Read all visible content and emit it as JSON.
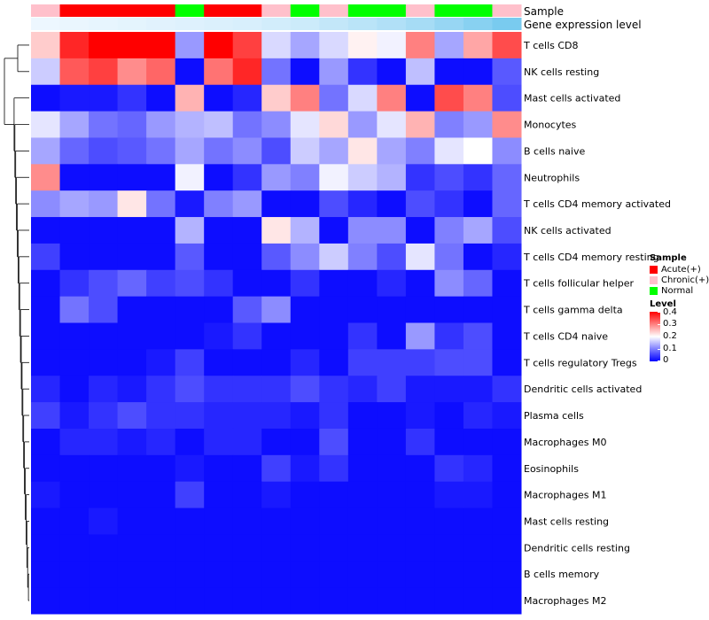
{
  "chart_data": {
    "type": "heatmap",
    "title": "",
    "top_annotation_labels": [
      "Sample",
      "Gene expression level"
    ],
    "row_labels": [
      "T cells CD8",
      "NK cells resting",
      "Mast cells activated",
      "Monocytes",
      "B cells naive",
      "Neutrophils",
      "T cells CD4 memory activated",
      "NK cells activated",
      "T cells CD4 memory resting",
      "T cells follicular helper",
      "T cells gamma delta",
      "T cells CD4 naive",
      "T cells regulatory  Tregs",
      "Dendritic cells activated",
      "Plasma cells",
      "Macrophages M0",
      "Eosinophils",
      "Macrophages M1",
      "Mast cells resting",
      "Dendritic cells resting",
      "B cells memory",
      "Macrophages M2"
    ],
    "sample_groups": [
      "Chronic(+)",
      "Acute(+)",
      "Acute(+)",
      "Acute(+)",
      "Acute(+)",
      "Normal",
      "Acute(+)",
      "Acute(+)",
      "Chronic(+)",
      "Normal",
      "Chronic(+)",
      "Normal",
      "Normal",
      "Chronic(+)",
      "Normal",
      "Normal",
      "Chronic(+)"
    ],
    "expression_level_annotation": [
      0.02,
      0.04,
      0.06,
      0.08,
      0.1,
      0.12,
      0.14,
      0.16,
      0.2,
      0.24,
      0.3,
      0.36,
      0.42,
      0.5,
      0.6,
      0.7,
      0.8
    ],
    "values": [
      [
        0.24,
        0.37,
        0.4,
        0.4,
        0.4,
        0.12,
        0.4,
        0.35,
        0.17,
        0.13,
        0.17,
        0.21,
        0.19,
        0.3,
        0.13,
        0.27,
        0.34
      ],
      [
        0.16,
        0.33,
        0.35,
        0.29,
        0.32,
        0.01,
        0.31,
        0.37,
        0.09,
        0.01,
        0.12,
        0.04,
        0.01,
        0.15,
        0.01,
        0.01,
        0.07
      ],
      [
        0.01,
        0.02,
        0.02,
        0.04,
        0.01,
        0.26,
        0.01,
        0.03,
        0.24,
        0.3,
        0.09,
        0.17,
        0.3,
        0.01,
        0.34,
        0.3,
        0.06
      ],
      [
        0.18,
        0.13,
        0.09,
        0.08,
        0.12,
        0.14,
        0.15,
        0.09,
        0.11,
        0.18,
        0.23,
        0.12,
        0.18,
        0.26,
        0.1,
        0.12,
        0.29
      ],
      [
        0.13,
        0.08,
        0.06,
        0.07,
        0.09,
        0.13,
        0.09,
        0.11,
        0.06,
        0.16,
        0.13,
        0.22,
        0.13,
        0.1,
        0.18,
        0.2,
        0.11
      ],
      [
        0.29,
        0.01,
        0.01,
        0.01,
        0.01,
        0.19,
        0.01,
        0.04,
        0.12,
        0.1,
        0.19,
        0.16,
        0.14,
        0.04,
        0.06,
        0.04,
        0.08
      ],
      [
        0.11,
        0.13,
        0.12,
        0.22,
        0.09,
        0.02,
        0.1,
        0.12,
        0.01,
        0.01,
        0.06,
        0.03,
        0.01,
        0.06,
        0.04,
        0.01,
        0.08
      ],
      [
        0.01,
        0.01,
        0.01,
        0.01,
        0.01,
        0.14,
        0.01,
        0.01,
        0.22,
        0.14,
        0.01,
        0.11,
        0.11,
        0.01,
        0.1,
        0.13,
        0.06
      ],
      [
        0.05,
        0.01,
        0.01,
        0.01,
        0.01,
        0.07,
        0.01,
        0.01,
        0.07,
        0.11,
        0.16,
        0.1,
        0.06,
        0.18,
        0.09,
        0.01,
        0.03
      ],
      [
        0.01,
        0.04,
        0.06,
        0.08,
        0.05,
        0.06,
        0.04,
        0.01,
        0.01,
        0.04,
        0.01,
        0.01,
        0.03,
        0.01,
        0.11,
        0.08,
        0.01
      ],
      [
        0.01,
        0.09,
        0.06,
        0.01,
        0.01,
        0.01,
        0.01,
        0.07,
        0.11,
        0.01,
        0.01,
        0.01,
        0.01,
        0.01,
        0.01,
        0.01,
        0.01
      ],
      [
        0.01,
        0.01,
        0.01,
        0.01,
        0.01,
        0.01,
        0.02,
        0.04,
        0.01,
        0.01,
        0.01,
        0.04,
        0.01,
        0.12,
        0.04,
        0.06,
        0.01
      ],
      [
        0.01,
        0.01,
        0.01,
        0.01,
        0.02,
        0.05,
        0.01,
        0.01,
        0.01,
        0.03,
        0.01,
        0.05,
        0.05,
        0.05,
        0.06,
        0.06,
        0.01
      ],
      [
        0.03,
        0.01,
        0.03,
        0.02,
        0.04,
        0.06,
        0.04,
        0.04,
        0.04,
        0.06,
        0.04,
        0.03,
        0.05,
        0.02,
        0.02,
        0.02,
        0.04
      ],
      [
        0.05,
        0.02,
        0.04,
        0.06,
        0.04,
        0.04,
        0.03,
        0.03,
        0.03,
        0.02,
        0.04,
        0.01,
        0.01,
        0.02,
        0.01,
        0.03,
        0.02
      ],
      [
        0.01,
        0.03,
        0.03,
        0.02,
        0.03,
        0.01,
        0.03,
        0.03,
        0.01,
        0.01,
        0.06,
        0.01,
        0.01,
        0.04,
        0.01,
        0.01,
        0.01
      ],
      [
        0.01,
        0.01,
        0.01,
        0.01,
        0.01,
        0.02,
        0.01,
        0.01,
        0.05,
        0.02,
        0.04,
        0.01,
        0.01,
        0.01,
        0.04,
        0.03,
        0.01
      ],
      [
        0.02,
        0.01,
        0.01,
        0.01,
        0.01,
        0.05,
        0.01,
        0.01,
        0.02,
        0.01,
        0.01,
        0.01,
        0.01,
        0.01,
        0.02,
        0.02,
        0.01
      ],
      [
        0.01,
        0.01,
        0.02,
        0.01,
        0.01,
        0.01,
        0.01,
        0.01,
        0.01,
        0.01,
        0.01,
        0.01,
        0.01,
        0.01,
        0.01,
        0.01,
        0.01
      ],
      [
        0.01,
        0.01,
        0.01,
        0.01,
        0.01,
        0.01,
        0.01,
        0.01,
        0.01,
        0.01,
        0.01,
        0.01,
        0.01,
        0.01,
        0.01,
        0.01,
        0.01
      ],
      [
        0.01,
        0.01,
        0.01,
        0.01,
        0.01,
        0.01,
        0.01,
        0.01,
        0.01,
        0.01,
        0.01,
        0.01,
        0.01,
        0.01,
        0.01,
        0.01,
        0.01
      ],
      [
        0.01,
        0.01,
        0.01,
        0.01,
        0.01,
        0.01,
        0.01,
        0.01,
        0.01,
        0.01,
        0.01,
        0.01,
        0.01,
        0.01,
        0.01,
        0.01,
        0.01
      ]
    ],
    "color_scale": {
      "low": "#0000ff",
      "mid": "#ffffff",
      "high": "#ff0000",
      "min": 0,
      "mid_value": 0.2,
      "max": 0.4
    },
    "legend": {
      "sample_title": "Sample",
      "sample_items": [
        {
          "label": "Acute(+)",
          "color": "#ff0000"
        },
        {
          "label": "Chronic(+)",
          "color": "#ffc0cb"
        },
        {
          "label": "Normal",
          "color": "#00ff00"
        }
      ],
      "level_title": "Level",
      "level_ticks": [
        "0.4",
        "0.3",
        "0.2",
        "0.1",
        "0"
      ],
      "placement": "right"
    },
    "expression_colors": {
      "low": "#f0f8ff",
      "high": "#5bc0eb"
    },
    "row_dendrogram": true
  }
}
